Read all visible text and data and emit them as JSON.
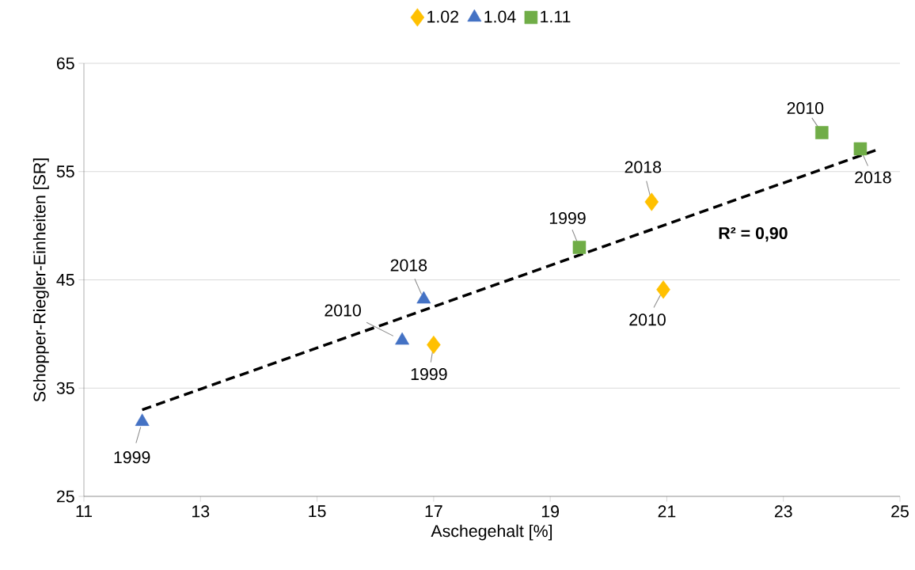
{
  "chart_data": {
    "type": "scatter",
    "xlabel": "Aschegehalt [%]",
    "ylabel": "Schopper-Riegler-Einheiten [SR]",
    "xlim": [
      11,
      25
    ],
    "xticks": [
      11,
      13,
      15,
      17,
      19,
      21,
      23,
      25
    ],
    "ylim": [
      25,
      65
    ],
    "yticks": [
      25,
      35,
      45,
      55,
      65
    ],
    "grid": "y",
    "legend": "top",
    "series": [
      {
        "name": "1.02",
        "color": "#ffc000",
        "marker": "diamond",
        "x": [
          17.0,
          20.74,
          20.94
        ],
        "values": [
          39.0,
          52.2,
          44.1
        ]
      },
      {
        "name": "1.04",
        "color": "#4472c4",
        "marker": "triangle",
        "x": [
          12.0,
          16.46,
          16.83
        ],
        "values": [
          31.9,
          39.4,
          43.2
        ]
      },
      {
        "name": "1.11",
        "color": "#70ad47",
        "marker": "square",
        "x": [
          19.5,
          23.66,
          24.32
        ],
        "values": [
          48.0,
          58.6,
          57.1
        ]
      },
      {
        "type": "line",
        "color": "#000000",
        "marker": "none",
        "line_style": "dashed",
        "x": [
          12.0,
          24.6
        ],
        "values": [
          33.0,
          57.0
        ]
      }
    ],
    "annotations": [
      {
        "text": "1999",
        "x": 17.0,
        "y": 39.0
      },
      {
        "text": "2018",
        "x": 20.74,
        "y": 52.2
      },
      {
        "text": "2010",
        "x": 20.94,
        "y": 44.1
      },
      {
        "text": "1999",
        "x": 12.0,
        "y": 31.9
      },
      {
        "text": "2010",
        "x": 16.46,
        "y": 39.4
      },
      {
        "text": "2018",
        "x": 16.83,
        "y": 43.2
      },
      {
        "text": "1999",
        "x": 19.5,
        "y": 48.0
      },
      {
        "text": "2010",
        "x": 23.66,
        "y": 58.6
      },
      {
        "text": "2018",
        "x": 24.32,
        "y": 57.1
      },
      "R² = 0,90"
    ]
  }
}
